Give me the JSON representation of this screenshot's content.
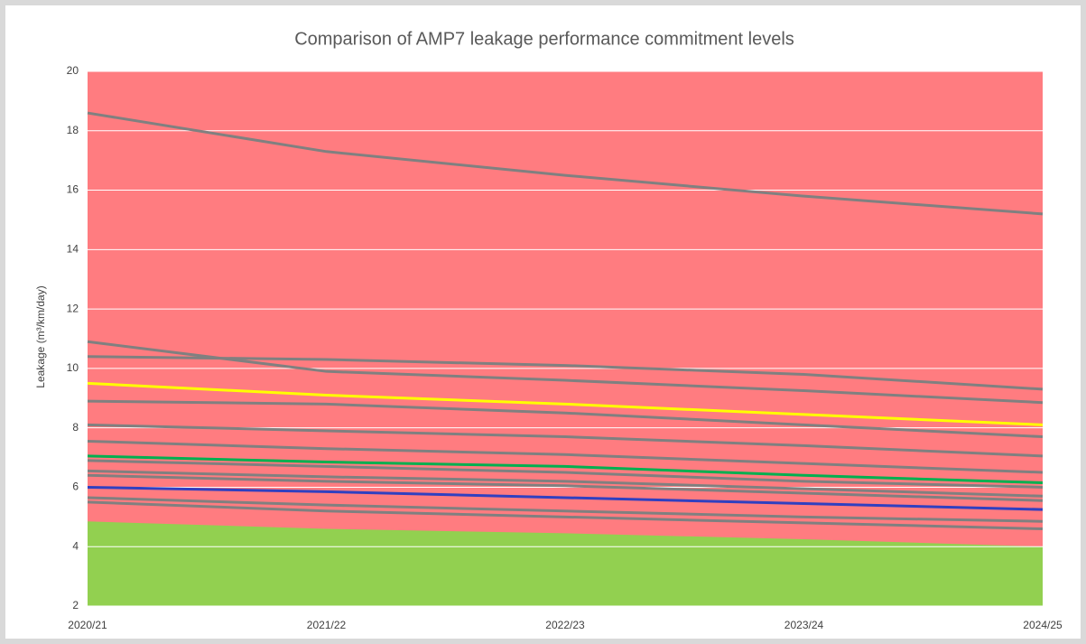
{
  "chart_data": {
    "type": "line",
    "title": "Comparison of AMP7 leakage performance commitment levels",
    "y_label": "Leakage (m³/km/day)",
    "categories": [
      "2020/21",
      "2021/22",
      "2022/23",
      "2023/24",
      "2024/25"
    ],
    "ylim": [
      2,
      20
    ],
    "yticks": [
      2,
      4,
      6,
      8,
      10,
      12,
      14,
      16,
      18,
      20
    ],
    "grid": true,
    "plot_background": "#ff7c80",
    "areas": [
      {
        "color": "#92d050",
        "values": [
          4.85,
          4.6,
          4.45,
          4.25,
          4.0
        ]
      }
    ],
    "series": [
      {
        "color": "#808080",
        "values": [
          18.6,
          17.3,
          16.5,
          15.8,
          15.2
        ]
      },
      {
        "color": "#808080",
        "values": [
          10.9,
          9.9,
          9.6,
          9.25,
          8.85
        ]
      },
      {
        "color": "#808080",
        "values": [
          10.4,
          10.3,
          10.1,
          9.8,
          9.3
        ]
      },
      {
        "color": "#808080",
        "values": [
          8.9,
          8.8,
          8.5,
          8.1,
          7.7
        ]
      },
      {
        "color": "#808080",
        "values": [
          8.1,
          7.9,
          7.7,
          7.4,
          7.05
        ]
      },
      {
        "color": "#808080",
        "values": [
          7.55,
          7.3,
          7.1,
          6.8,
          6.5
        ]
      },
      {
        "color": "#808080",
        "values": [
          6.9,
          6.7,
          6.5,
          6.2,
          6.0
        ]
      },
      {
        "color": "#808080",
        "values": [
          6.55,
          6.35,
          6.2,
          5.95,
          5.7
        ]
      },
      {
        "color": "#808080",
        "values": [
          6.4,
          6.2,
          6.05,
          5.8,
          5.55
        ]
      },
      {
        "color": "#808080",
        "values": [
          5.65,
          5.4,
          5.2,
          5.0,
          4.85
        ]
      },
      {
        "color": "#808080",
        "values": [
          5.5,
          5.2,
          5.0,
          4.8,
          4.6
        ]
      },
      {
        "color": "#ffff00",
        "values": [
          9.5,
          9.1,
          8.8,
          8.45,
          8.1
        ]
      },
      {
        "color": "#00b050",
        "values": [
          7.05,
          6.85,
          6.7,
          6.4,
          6.15
        ]
      },
      {
        "color": "#3040c0",
        "values": [
          6.0,
          5.85,
          5.65,
          5.45,
          5.25
        ]
      }
    ]
  }
}
